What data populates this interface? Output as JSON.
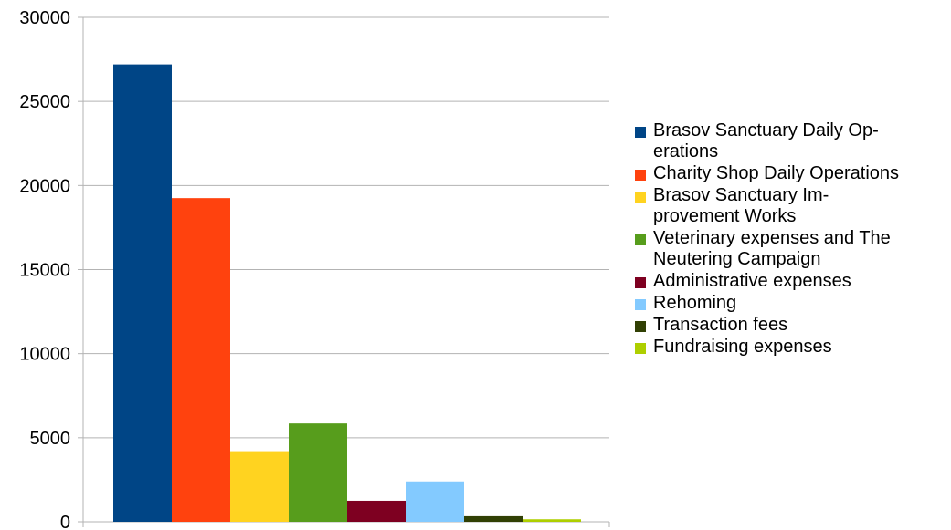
{
  "chart_data": {
    "type": "bar",
    "title": "",
    "xlabel": "",
    "ylabel": "",
    "ylim": [
      0,
      30000
    ],
    "yticks": [
      "0",
      "5000",
      "10000",
      "15000",
      "20000",
      "25000",
      "30000"
    ],
    "grid": true,
    "legend_position": "right",
    "series": [
      {
        "name": "Brasov Sanctuary Daily Operations",
        "color": "#004586",
        "value": 27200
      },
      {
        "name": "Charity Shop Daily Operations",
        "color": "#ff420e",
        "value": 19250
      },
      {
        "name": "Brasov Sanctuary Improvement Works",
        "color": "#ffd320",
        "value": 4200
      },
      {
        "name": "Veterinary expenses and The Neutering Campaign",
        "color": "#579d1c",
        "value": 5850
      },
      {
        "name": "Administrative expenses",
        "color": "#7e0021",
        "value": 1250
      },
      {
        "name": "Rehoming",
        "color": "#83caff",
        "value": 2400
      },
      {
        "name": "Transaction fees",
        "color": "#314004",
        "value": 330
      },
      {
        "name": "Fundraising expenses",
        "color": "#aecf00",
        "value": 150
      }
    ],
    "legend_lines": [
      [
        "Brasov Sanctuary Daily Op-",
        "erations"
      ],
      [
        "Charity Shop Daily Operations"
      ],
      [
        "Brasov Sanctuary Im-",
        "provement Works"
      ],
      [
        "Veterinary expenses and The",
        "Neutering Campaign"
      ],
      [
        "Administrative expenses"
      ],
      [
        "Rehoming"
      ],
      [
        "Transaction fees"
      ],
      [
        "Fundraising expenses"
      ]
    ]
  }
}
